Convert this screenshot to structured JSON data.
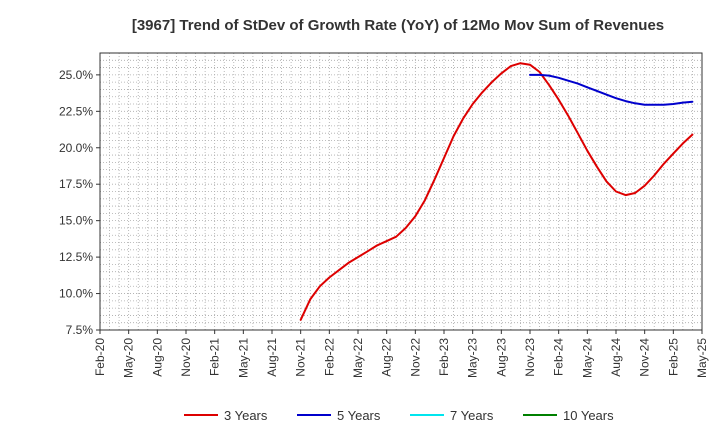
{
  "chart_data": {
    "type": "line",
    "title": "[3967]  Trend of StDev of Growth Rate (YoY) of 12Mo Mov Sum of Revenues",
    "xlabel": "",
    "ylabel": "",
    "x_ticks": [
      "Feb-20",
      "May-20",
      "Aug-20",
      "Nov-20",
      "Feb-21",
      "May-21",
      "Aug-21",
      "Nov-21",
      "Feb-22",
      "May-22",
      "Aug-22",
      "Nov-22",
      "Feb-23",
      "May-23",
      "Aug-23",
      "Nov-23",
      "Feb-24",
      "May-24",
      "Aug-24",
      "Nov-24",
      "Feb-25",
      "May-25"
    ],
    "y_ticks": [
      "7.5%",
      "10.0%",
      "12.5%",
      "15.0%",
      "17.5%",
      "20.0%",
      "22.5%",
      "25.0%"
    ],
    "ylim": [
      7.5,
      26.5
    ],
    "x_range_months": [
      0,
      63
    ],
    "grid": true,
    "legend_position": "bottom",
    "series": [
      {
        "name": "3 Years",
        "color": "#dd0000",
        "points": [
          [
            21,
            8.2
          ],
          [
            22,
            9.6
          ],
          [
            23,
            10.5
          ],
          [
            24,
            11.1
          ],
          [
            25,
            11.6
          ],
          [
            26,
            12.1
          ],
          [
            27,
            12.5
          ],
          [
            28,
            12.9
          ],
          [
            29,
            13.3
          ],
          [
            30,
            13.6
          ],
          [
            31,
            13.9
          ],
          [
            32,
            14.5
          ],
          [
            33,
            15.3
          ],
          [
            34,
            16.4
          ],
          [
            35,
            17.8
          ],
          [
            36,
            19.3
          ],
          [
            37,
            20.8
          ],
          [
            38,
            22.0
          ],
          [
            39,
            23.0
          ],
          [
            40,
            23.8
          ],
          [
            41,
            24.5
          ],
          [
            42,
            25.1
          ],
          [
            43,
            25.6
          ],
          [
            44,
            25.8
          ],
          [
            45,
            25.7
          ],
          [
            46,
            25.2
          ],
          [
            47,
            24.3
          ],
          [
            48,
            23.3
          ],
          [
            49,
            22.2
          ],
          [
            50,
            21.0
          ],
          [
            51,
            19.8
          ],
          [
            52,
            18.7
          ],
          [
            53,
            17.7
          ],
          [
            54,
            17.0
          ],
          [
            55,
            16.75
          ],
          [
            56,
            16.9
          ],
          [
            57,
            17.4
          ],
          [
            58,
            18.1
          ],
          [
            59,
            18.9
          ],
          [
            60,
            19.6
          ],
          [
            61,
            20.3
          ],
          [
            62,
            20.9
          ]
        ]
      },
      {
        "name": "5 Years",
        "color": "#0000cc",
        "points": [
          [
            45,
            25.0
          ],
          [
            46,
            25.0
          ],
          [
            47,
            24.95
          ],
          [
            48,
            24.8
          ],
          [
            49,
            24.6
          ],
          [
            50,
            24.4
          ],
          [
            51,
            24.15
          ],
          [
            52,
            23.9
          ],
          [
            53,
            23.65
          ],
          [
            54,
            23.4
          ],
          [
            55,
            23.2
          ],
          [
            56,
            23.05
          ],
          [
            57,
            22.95
          ],
          [
            58,
            22.95
          ],
          [
            59,
            22.95
          ],
          [
            60,
            23.0
          ],
          [
            61,
            23.1
          ],
          [
            62,
            23.15
          ]
        ]
      },
      {
        "name": "7 Years",
        "color": "#00e5ee",
        "points": []
      },
      {
        "name": "10 Years",
        "color": "#008000",
        "points": []
      }
    ]
  }
}
